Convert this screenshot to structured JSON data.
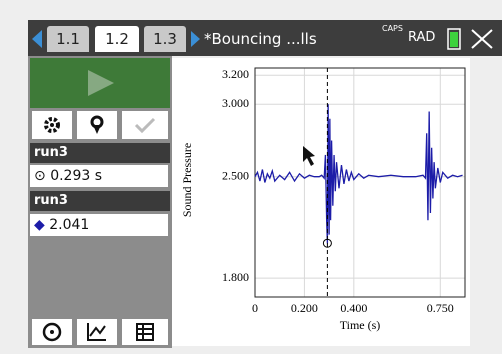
{
  "tabs": [
    "1.1",
    "1.2",
    "1.3"
  ],
  "doc_title": "*Bouncing ...lls",
  "status": {
    "caps": "CAPS",
    "mode": "RAD"
  },
  "sidebar": {
    "run_a": "run3",
    "run_b": "run3"
  },
  "chart_data": {
    "type": "line",
    "y_label": "Sound Pressure",
    "x_label": "Time (s)",
    "color": "#1c1ca8",
    "grid": true,
    "xlim": [
      0,
      0.85
    ],
    "ylim": [
      1.67,
      3.25
    ],
    "xticks": [
      0,
      {
        "value": 0.2,
        "label": "0.200"
      },
      {
        "value": 0.4,
        "label": "0.400"
      },
      {
        "value": 0.75,
        "label": "0.750"
      }
    ],
    "yticks": [
      {
        "value": 3.2,
        "label": "3.200"
      },
      {
        "value": 3.0,
        "label": "3.000"
      },
      {
        "value": 2.5,
        "label": "2.500"
      },
      {
        "value": 1.8,
        "label": "1.800"
      }
    ],
    "x": [
      0,
      0.01,
      0.02,
      0.03,
      0.04,
      0.05,
      0.06,
      0.07,
      0.08,
      0.1,
      0.12,
      0.14,
      0.16,
      0.18,
      0.2,
      0.22,
      0.24,
      0.26,
      0.27,
      0.28,
      0.285,
      0.29,
      0.293,
      0.296,
      0.3,
      0.303,
      0.306,
      0.31,
      0.315,
      0.32,
      0.325,
      0.33,
      0.34,
      0.35,
      0.36,
      0.37,
      0.38,
      0.39,
      0.4,
      0.42,
      0.44,
      0.46,
      0.5,
      0.55,
      0.6,
      0.65,
      0.68,
      0.69,
      0.695,
      0.7,
      0.705,
      0.71,
      0.715,
      0.72,
      0.725,
      0.73,
      0.74,
      0.75,
      0.76,
      0.78,
      0.8,
      0.82,
      0.84
    ],
    "values": [
      2.5,
      2.53,
      2.47,
      2.55,
      2.46,
      2.52,
      2.49,
      2.54,
      2.47,
      2.51,
      2.48,
      2.53,
      2.47,
      2.52,
      2.49,
      2.51,
      2.5,
      2.5,
      2.51,
      2.49,
      2.65,
      2.2,
      2.041,
      3.0,
      2.1,
      2.9,
      2.2,
      2.75,
      2.3,
      2.65,
      2.4,
      2.6,
      2.42,
      2.58,
      2.45,
      2.55,
      2.47,
      2.53,
      2.48,
      2.52,
      2.49,
      2.51,
      2.5,
      2.51,
      2.5,
      2.5,
      2.51,
      2.49,
      2.8,
      2.2,
      2.95,
      2.25,
      2.7,
      2.35,
      2.6,
      2.42,
      2.56,
      2.46,
      2.53,
      2.49,
      2.51,
      2.5,
      2.51
    ],
    "cursor": {
      "x": 0.293,
      "y": 2.041,
      "x_label": "0.293 s"
    }
  }
}
